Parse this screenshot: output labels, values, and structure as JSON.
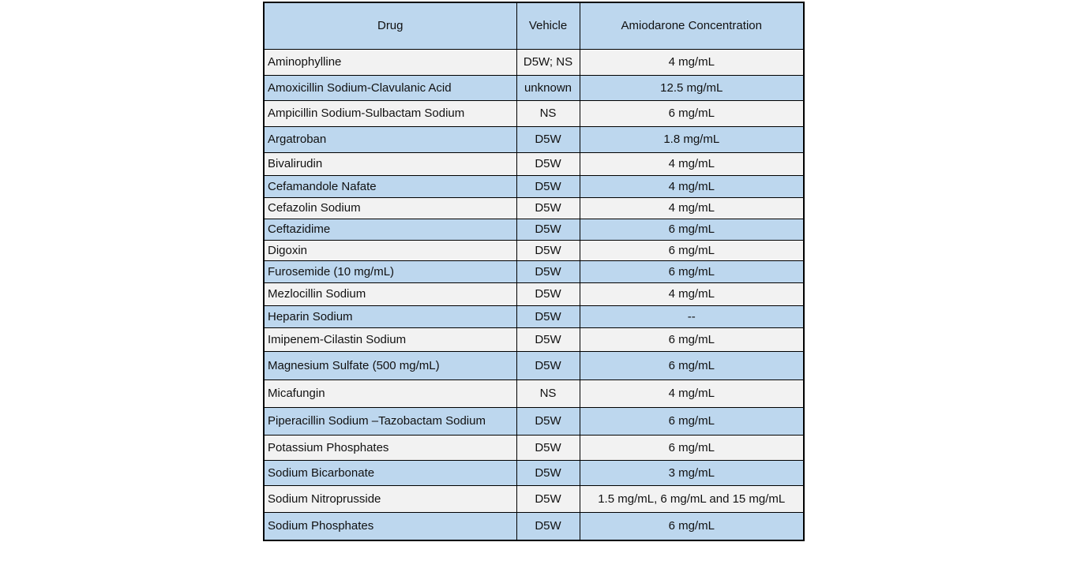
{
  "table": {
    "columns": [
      "Drug",
      "Vehicle",
      "Amiodarone Concentration"
    ],
    "rows": [
      {
        "drug": "Aminophylline",
        "vehicle": "D5W; NS",
        "concentration": "4 mg/mL"
      },
      {
        "drug": "Amoxicillin Sodium-Clavulanic Acid",
        "vehicle": "unknown",
        "concentration": "12.5 mg/mL"
      },
      {
        "drug": "Ampicillin Sodium-Sulbactam Sodium",
        "vehicle": "NS",
        "concentration": "6 mg/mL"
      },
      {
        "drug": "Argatroban",
        "vehicle": "D5W",
        "concentration": "1.8 mg/mL"
      },
      {
        "drug": "Bivalirudin",
        "vehicle": "D5W",
        "concentration": "4 mg/mL"
      },
      {
        "drug": "Cefamandole Nafate",
        "vehicle": "D5W",
        "concentration": "4 mg/mL"
      },
      {
        "drug": "Cefazolin Sodium",
        "vehicle": "D5W",
        "concentration": "4 mg/mL"
      },
      {
        "drug": "Ceftazidime",
        "vehicle": "D5W",
        "concentration": "6 mg/mL"
      },
      {
        "drug": "Digoxin",
        "vehicle": "D5W",
        "concentration": "6 mg/mL"
      },
      {
        "drug": "Furosemide (10 mg/mL)",
        "vehicle": "D5W",
        "concentration": "6 mg/mL"
      },
      {
        "drug": "Mezlocillin Sodium",
        "vehicle": "D5W",
        "concentration": "4 mg/mL"
      },
      {
        "drug": "Heparin Sodium",
        "vehicle": "D5W",
        "concentration": "--"
      },
      {
        "drug": "Imipenem-Cilastin Sodium",
        "vehicle": "D5W",
        "concentration": "6 mg/mL"
      },
      {
        "drug": "Magnesium Sulfate (500 mg/mL)",
        "vehicle": "D5W",
        "concentration": "6 mg/mL"
      },
      {
        "drug": "Micafungin",
        "vehicle": "NS",
        "concentration": "4 mg/mL"
      },
      {
        "drug": "Piperacillin Sodium –Tazobactam Sodium",
        "vehicle": "D5W",
        "concentration": "6 mg/mL"
      },
      {
        "drug": "Potassium Phosphates",
        "vehicle": "D5W",
        "concentration": "6 mg/mL"
      },
      {
        "drug": "Sodium Bicarbonate",
        "vehicle": "D5W",
        "concentration": "3 mg/mL"
      },
      {
        "drug": "Sodium Nitroprusside",
        "vehicle": "D5W",
        "concentration": "1.5 mg/mL, 6 mg/mL and 15 mg/mL"
      },
      {
        "drug": "Sodium Phosphates",
        "vehicle": "D5W",
        "concentration": "6 mg/mL"
      }
    ],
    "colors": {
      "header_bg": "#BDD7EE",
      "row_blue": "#BDD7EE",
      "row_gray": "#F2F2F2",
      "border": "#000000",
      "text": "#111111",
      "page_bg": "#FFFFFF"
    }
  }
}
